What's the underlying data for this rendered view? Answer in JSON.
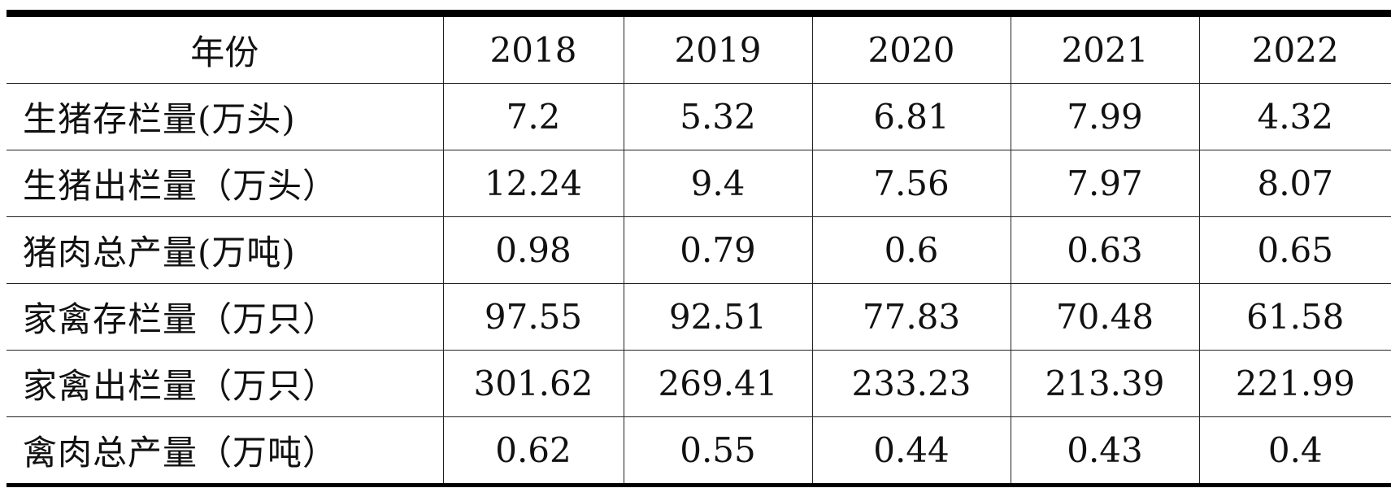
{
  "table": {
    "header": [
      "年份",
      "2018",
      "2019",
      "2020",
      "2021",
      "2022"
    ],
    "rows": [
      {
        "label": "生猪存栏量(万头)",
        "values": [
          "7.2",
          "5.32",
          "6.81",
          "7.99",
          "4.32"
        ]
      },
      {
        "label": "生猪出栏量（万头）",
        "values": [
          "12.24",
          "9.4",
          "7.56",
          "7.97",
          "8.07"
        ]
      },
      {
        "label": "猪肉总产量(万吨)",
        "values": [
          "0.98",
          "0.79",
          "0.6",
          "0.63",
          "0.65"
        ]
      },
      {
        "label": "家禽存栏量（万只）",
        "values": [
          "97.55",
          "92.51",
          "77.83",
          "70.48",
          "61.58"
        ]
      },
      {
        "label": "家禽出栏量（万只）",
        "values": [
          "301.62",
          "269.41",
          "233.23",
          "213.39",
          "221.99"
        ]
      },
      {
        "label": "禽肉总产量（万吨）",
        "values": [
          "0.62",
          "0.55",
          "0.44",
          "0.43",
          "0.4"
        ]
      }
    ]
  }
}
